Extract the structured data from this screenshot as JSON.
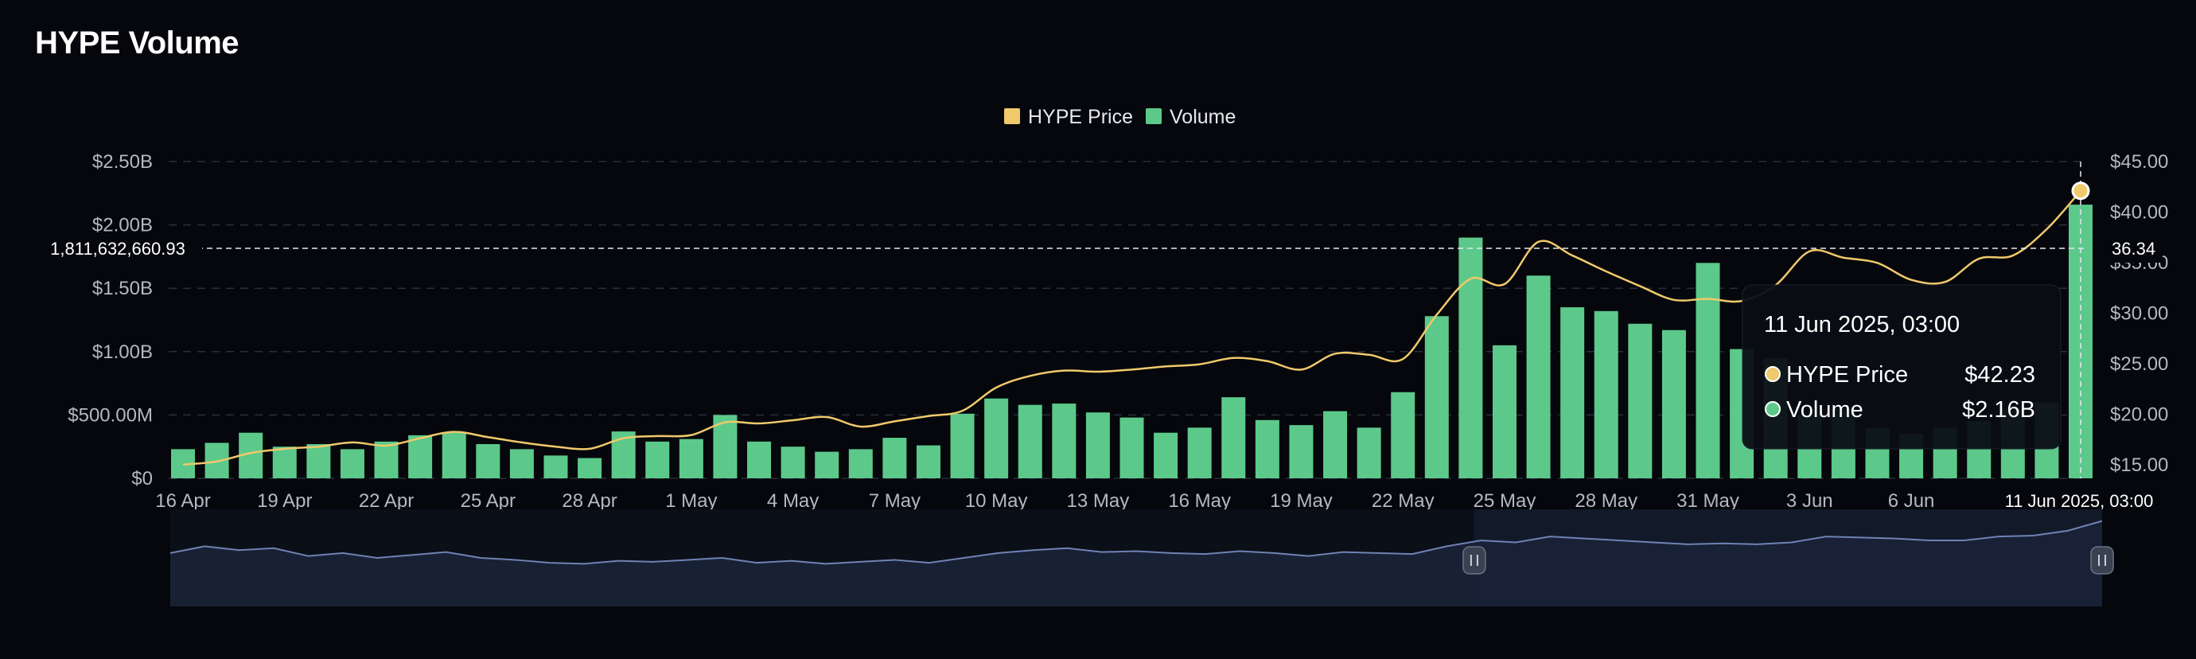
{
  "title": "HYPE Volume",
  "colors": {
    "background": "#05070c",
    "volume": "#5cc98a",
    "price": "#f0c96b",
    "grid": "#2a2f3a",
    "navigator_fill": "#1a2236",
    "navigator_line": "#6f82b4"
  },
  "chart_data": {
    "type": "bar",
    "title": "HYPE Volume",
    "legend": [
      {
        "name": "HYPE Price",
        "color": "#f0c96b"
      },
      {
        "name": "Volume",
        "color": "#5cc98a"
      }
    ],
    "legend_position": "top-center",
    "grid": true,
    "y_left": {
      "ticks": [
        "$0",
        "$500.00M",
        "$1.00B",
        "$1.50B",
        "$2.00B",
        "$2.50B"
      ],
      "range": [
        0,
        2.5
      ],
      "unit": "B USD"
    },
    "y_right": {
      "ticks": [
        "$15.00",
        "$20.00",
        "$25.00",
        "$30.00",
        "$35.00",
        "$40.00",
        "$45.00"
      ],
      "range": [
        15,
        45
      ]
    },
    "x_ticks": [
      "16 Apr",
      "19 Apr",
      "22 Apr",
      "25 Apr",
      "28 Apr",
      "1 May",
      "4 May",
      "7 May",
      "10 May",
      "13 May",
      "16 May",
      "19 May",
      "22 May",
      "25 May",
      "28 May",
      "31 May",
      "3 Jun",
      "6 Jun"
    ],
    "categories": [
      "16 Apr",
      "17 Apr",
      "18 Apr",
      "19 Apr",
      "20 Apr",
      "21 Apr",
      "22 Apr",
      "23 Apr",
      "24 Apr",
      "25 Apr",
      "26 Apr",
      "27 Apr",
      "28 Apr",
      "29 Apr",
      "30 Apr",
      "1 May",
      "2 May",
      "3 May",
      "4 May",
      "5 May",
      "6 May",
      "7 May",
      "8 May",
      "9 May",
      "10 May",
      "11 May",
      "12 May",
      "13 May",
      "14 May",
      "15 May",
      "16 May",
      "17 May",
      "18 May",
      "19 May",
      "20 May",
      "21 May",
      "22 May",
      "23 May",
      "24 May",
      "25 May",
      "26 May",
      "27 May",
      "28 May",
      "29 May",
      "30 May",
      "31 May",
      "1 Jun",
      "2 Jun",
      "3 Jun",
      "4 Jun",
      "5 Jun",
      "6 Jun",
      "7 Jun",
      "8 Jun",
      "9 Jun",
      "10 Jun",
      "11 Jun"
    ],
    "series": [
      {
        "name": "Volume",
        "type": "bar",
        "values": [
          0.23,
          0.28,
          0.36,
          0.25,
          0.27,
          0.23,
          0.29,
          0.34,
          0.36,
          0.27,
          0.23,
          0.18,
          0.16,
          0.37,
          0.29,
          0.31,
          0.5,
          0.29,
          0.25,
          0.21,
          0.23,
          0.32,
          0.26,
          0.51,
          0.63,
          0.58,
          0.59,
          0.52,
          0.48,
          0.36,
          0.4,
          0.64,
          0.46,
          0.42,
          0.53,
          0.4,
          0.68,
          1.28,
          1.9,
          1.05,
          1.6,
          1.35,
          1.32,
          1.22,
          1.17,
          1.7,
          1.02,
          0.95,
          0.5,
          0.55,
          0.4,
          0.35,
          0.4,
          0.45,
          0.55,
          0.6,
          2.16
        ]
      },
      {
        "name": "HYPE Price",
        "type": "line",
        "values": [
          16.3,
          16.6,
          17.4,
          17.8,
          18.0,
          18.4,
          18.1,
          18.8,
          19.4,
          18.9,
          18.4,
          18.0,
          17.8,
          18.8,
          19.0,
          19.1,
          20.3,
          20.2,
          20.5,
          20.8,
          19.9,
          20.4,
          20.9,
          21.4,
          23.6,
          24.7,
          25.2,
          25.1,
          25.3,
          25.6,
          25.8,
          26.4,
          26.1,
          25.3,
          26.8,
          26.7,
          26.3,
          30.5,
          33.9,
          33.4,
          37.4,
          36.1,
          34.6,
          33.2,
          31.9,
          32.0,
          31.8,
          33.3,
          36.5,
          35.9,
          35.4,
          33.8,
          33.6,
          35.8,
          36.1,
          38.6,
          42.23
        ]
      }
    ],
    "annotations": {
      "crosshair_left_value": "1,811,632,660.93",
      "crosshair_right_value": "36.34",
      "crosshair_x_label": "11 Jun 2025, 03:00"
    }
  },
  "tooltip": {
    "date": "11 Jun 2025, 03:00",
    "rows": [
      {
        "label": "HYPE Price",
        "value": "$42.23",
        "color": "#f0c96b"
      },
      {
        "label": "Volume",
        "value": "$2.16B",
        "color": "#5cc98a"
      }
    ]
  },
  "navigator": {
    "trace": [
      0.55,
      0.62,
      0.58,
      0.6,
      0.52,
      0.55,
      0.5,
      0.53,
      0.56,
      0.5,
      0.48,
      0.45,
      0.44,
      0.47,
      0.46,
      0.48,
      0.5,
      0.45,
      0.47,
      0.44,
      0.46,
      0.48,
      0.45,
      0.5,
      0.55,
      0.58,
      0.6,
      0.56,
      0.57,
      0.55,
      0.54,
      0.57,
      0.55,
      0.52,
      0.56,
      0.55,
      0.54,
      0.62,
      0.68,
      0.66,
      0.72,
      0.7,
      0.68,
      0.66,
      0.64,
      0.65,
      0.64,
      0.66,
      0.72,
      0.71,
      0.7,
      0.68,
      0.68,
      0.72,
      0.73,
      0.78,
      0.88
    ],
    "selection_start_fraction": 0.675,
    "selection_end_fraction": 1.0
  }
}
